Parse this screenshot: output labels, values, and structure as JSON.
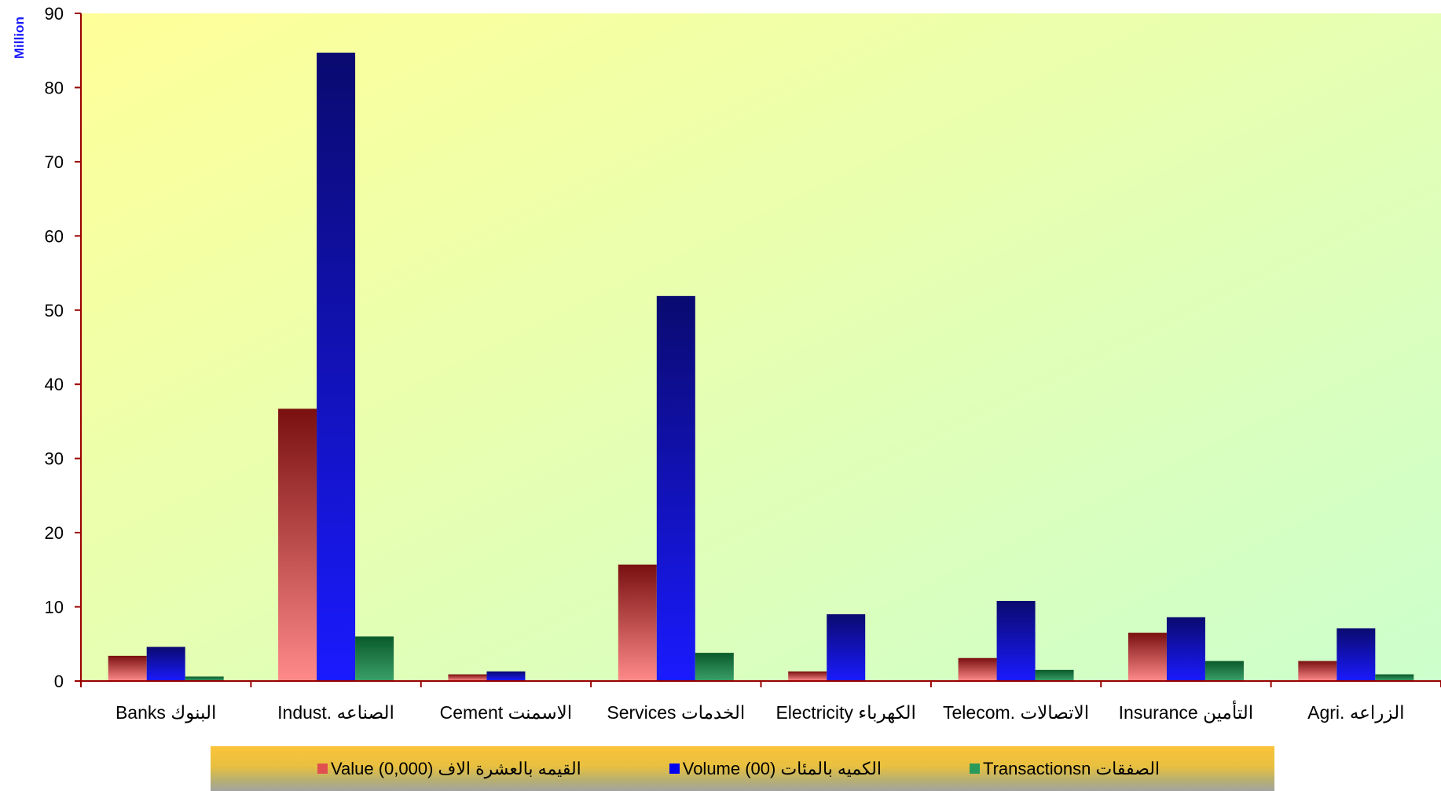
{
  "chart_data": {
    "type": "bar",
    "unit_label": "Million",
    "ylim": [
      0,
      90
    ],
    "yticks": [
      0,
      10,
      20,
      30,
      40,
      50,
      60,
      70,
      80,
      90
    ],
    "categories": [
      "Banks البنوك",
      "Indust. الصناعه",
      "Cement الاسمنت",
      "Services الخدمات",
      "Electricity الكهرباء",
      "Telecom. الاتصالات",
      "Insurance التأمين",
      "Agri. الزراعه"
    ],
    "series": [
      {
        "name": "Value  (0,000) القيمه بالعشرة الاف",
        "values": [
          3.4,
          36.7,
          0.9,
          15.7,
          1.3,
          3.1,
          6.5,
          2.7
        ]
      },
      {
        "name": "Volume (00) الكميه بالمئات",
        "values": [
          4.6,
          84.7,
          1.3,
          51.9,
          9.0,
          10.8,
          8.6,
          7.1
        ]
      },
      {
        "name": "Transactionsn الصفقات",
        "values": [
          0.6,
          6.0,
          0.0,
          3.8,
          0.0,
          1.5,
          2.7,
          0.9
        ]
      }
    ],
    "grid": false,
    "legend_position": "bottom"
  },
  "colors": {
    "value_dark": "#7a1010",
    "value_light": "#ff8a8a",
    "volume_dark": "#0a0a70",
    "volume_light": "#1a1aff",
    "transactions_dark": "#0a5a2a",
    "transactions_light": "#3aa06a",
    "plot_bg_left": "#ffff99",
    "plot_bg_right": "#ccffcc",
    "axis": "#990000",
    "legend_value": "#e05050",
    "legend_volume": "#0000ee",
    "legend_transactions": "#2a9a5a"
  }
}
